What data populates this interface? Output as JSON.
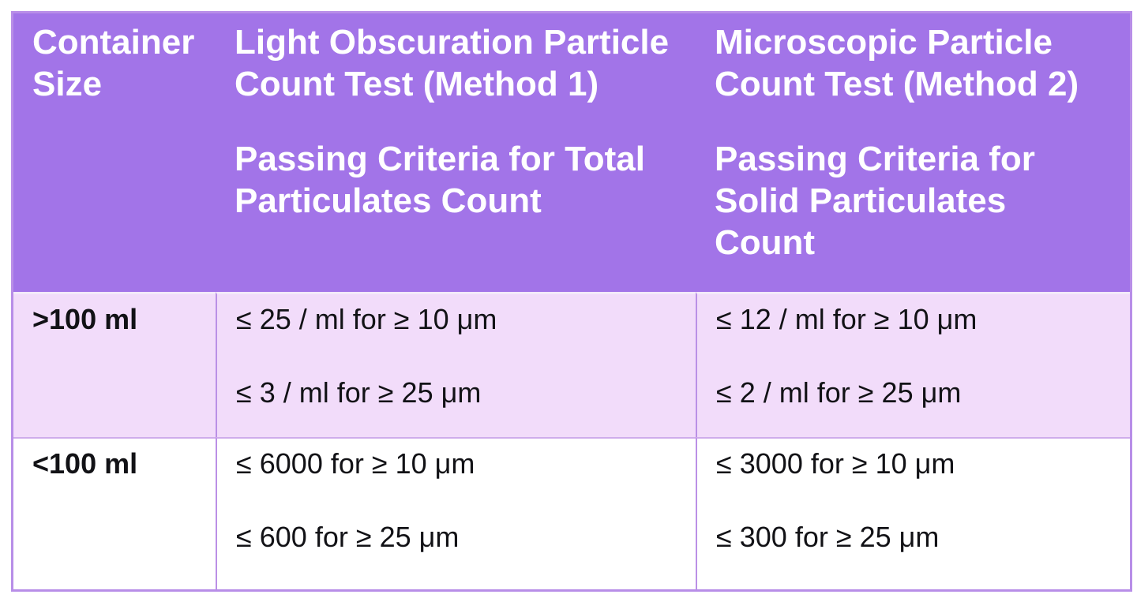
{
  "colors": {
    "header_bg": "#a274e8",
    "header_text": "#ffffff",
    "row_odd_bg": "#f2dcfa",
    "row_even_bg": "#ffffff",
    "body_text": "#121216",
    "border_outer": "#b88ee8",
    "border_col": "#bb90e6",
    "border_row": "#cfaceb",
    "header_sep": "#f3eaf9"
  },
  "table": {
    "header": {
      "container_size": {
        "lines": [
          "Container",
          "Size"
        ]
      },
      "method1": {
        "title_lines": [
          "Light Obscuration Particle",
          "Count Test (Method 1)"
        ],
        "subtitle_lines": [
          "Passing Criteria for Total",
          "Particulates Count"
        ]
      },
      "method2": {
        "title_lines": [
          "Microscopic Particle",
          "Count Test (Method 2)"
        ],
        "subtitle_lines": [
          "Passing Criteria for",
          "Solid Particulates",
          "Count"
        ]
      }
    },
    "rows": [
      {
        "container_size": ">100 ml",
        "method1_criteria": [
          "≤ 25 / ml for ≥ 10 μm",
          "≤ 3 / ml for ≥ 25 μm"
        ],
        "method2_criteria": [
          "≤ 12 / ml for ≥ 10 μm",
          "≤ 2 / ml for ≥ 25 μm"
        ]
      },
      {
        "container_size": "<100 ml",
        "method1_criteria": [
          "≤ 6000 for ≥ 10 μm",
          "≤ 600 for ≥ 25 μm"
        ],
        "method2_criteria": [
          "≤ 3000 for ≥ 10 μm",
          "≤ 300 for ≥ 25 μm"
        ]
      }
    ]
  }
}
